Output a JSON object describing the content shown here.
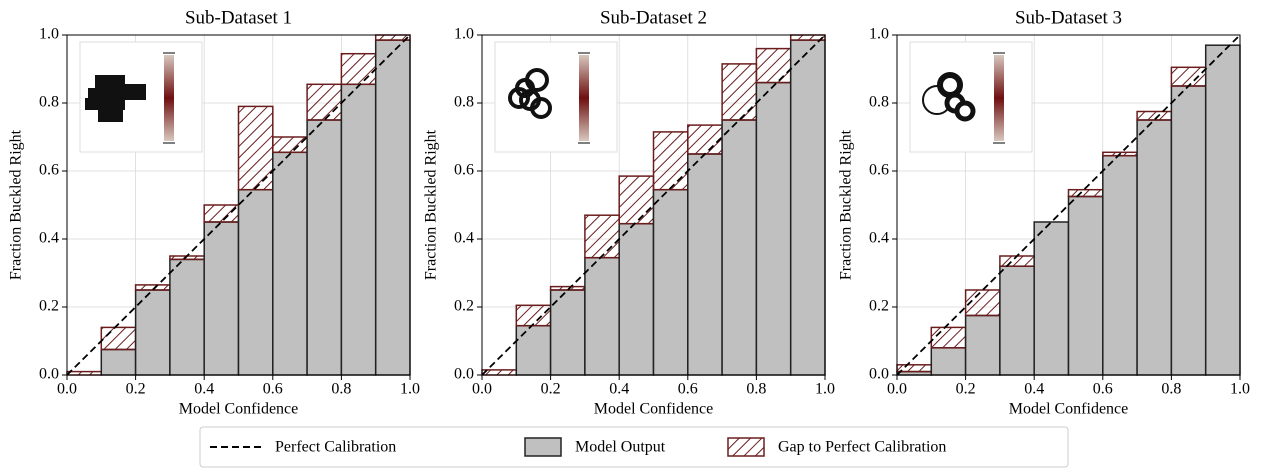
{
  "chart_data": [
    {
      "type": "histogram",
      "title": "Sub-Dataset 1",
      "xlabel": "Model Confidence",
      "ylabel": "Fraction Buckled Right",
      "reference_line": "Perfect Calibration",
      "stacked": true,
      "grid": true,
      "bins": [
        0,
        0.1,
        0.2,
        0.3,
        0.4,
        0.5,
        0.6,
        0.7,
        0.8,
        0.9,
        1
      ],
      "series": [
        {
          "name": "Model Output",
          "color": "#c0c0c0",
          "values": [
            0,
            0.075,
            0.25,
            0.34,
            0.45,
            0.545,
            0.655,
            0.75,
            0.855,
            0.985
          ]
        },
        {
          "name": "Gap to Perfect Calibration",
          "color": "#6b1d1d",
          "values": [
            0.01,
            0.065,
            0.015,
            0.01,
            0.05,
            0.245,
            0.045,
            0.105,
            0.09,
            0.015
          ]
        }
      ],
      "xlim": [
        0,
        1
      ],
      "ylim": [
        0,
        1
      ],
      "xticks": [
        {
          "value": 0,
          "label": "0.0"
        },
        0.2,
        0.4,
        0.6,
        0.8,
        {
          "value": 1,
          "label": "1.0"
        }
      ],
      "yticks": [
        {
          "value": 0,
          "label": "0.0"
        },
        0.2,
        0.4,
        0.6,
        0.8,
        {
          "value": 1,
          "label": "1.0"
        }
      ]
    },
    {
      "type": "histogram",
      "title": "Sub-Dataset 2",
      "xlabel": "Model Confidence",
      "ylabel": "Fraction Buckled Right",
      "reference_line": "Perfect Calibration",
      "stacked": true,
      "grid": true,
      "bins": [
        0,
        0.1,
        0.2,
        0.3,
        0.4,
        0.5,
        0.6,
        0.7,
        0.8,
        0.9,
        1
      ],
      "series": [
        {
          "name": "Model Output",
          "color": "#c0c0c0",
          "values": [
            0,
            0.145,
            0.25,
            0.345,
            0.445,
            0.545,
            0.65,
            0.75,
            0.86,
            0.985
          ]
        },
        {
          "name": "Gap to Perfect Calibration",
          "color": "#6b1d1d",
          "values": [
            0.015,
            0.06,
            0.01,
            0.125,
            0.14,
            0.17,
            0.085,
            0.165,
            0.1,
            0.015
          ]
        }
      ],
      "xlim": [
        0,
        1
      ],
      "ylim": [
        0,
        1
      ],
      "xticks": [
        {
          "value": 0,
          "label": "0.0"
        },
        0.2,
        0.4,
        0.6,
        0.8,
        {
          "value": 1,
          "label": "1.0"
        }
      ],
      "yticks": [
        {
          "value": 0,
          "label": "0.0"
        },
        0.2,
        0.4,
        0.6,
        0.8,
        {
          "value": 1,
          "label": "1.0"
        }
      ]
    },
    {
      "type": "histogram",
      "title": "Sub-Dataset 3",
      "xlabel": "Model Confidence",
      "ylabel": "Fraction Buckled Right",
      "reference_line": "Perfect Calibration",
      "stacked": true,
      "grid": true,
      "bins": [
        0,
        0.1,
        0.2,
        0.3,
        0.4,
        0.5,
        0.6,
        0.7,
        0.8,
        0.9,
        1
      ],
      "series": [
        {
          "name": "Model Output",
          "color": "#c0c0c0",
          "values": [
            0.01,
            0.08,
            0.175,
            0.32,
            0.45,
            0.525,
            0.645,
            0.75,
            0.85,
            0.97
          ]
        },
        {
          "name": "Gap to Perfect Calibration",
          "color": "#6b1d1d",
          "values": [
            0.02,
            0.06,
            0.075,
            0.03,
            0,
            0.02,
            0.01,
            0.025,
            0.055,
            0
          ]
        }
      ],
      "xlim": [
        0,
        1
      ],
      "ylim": [
        0,
        1
      ],
      "xticks": [
        {
          "value": 0,
          "label": "0.0"
        },
        0.2,
        0.4,
        0.6,
        0.8,
        {
          "value": 1,
          "label": "1.0"
        }
      ],
      "yticks": [
        {
          "value": 0,
          "label": "0.0"
        },
        0.2,
        0.4,
        0.6,
        0.8,
        {
          "value": 1,
          "label": "1.0"
        }
      ]
    }
  ]
}
